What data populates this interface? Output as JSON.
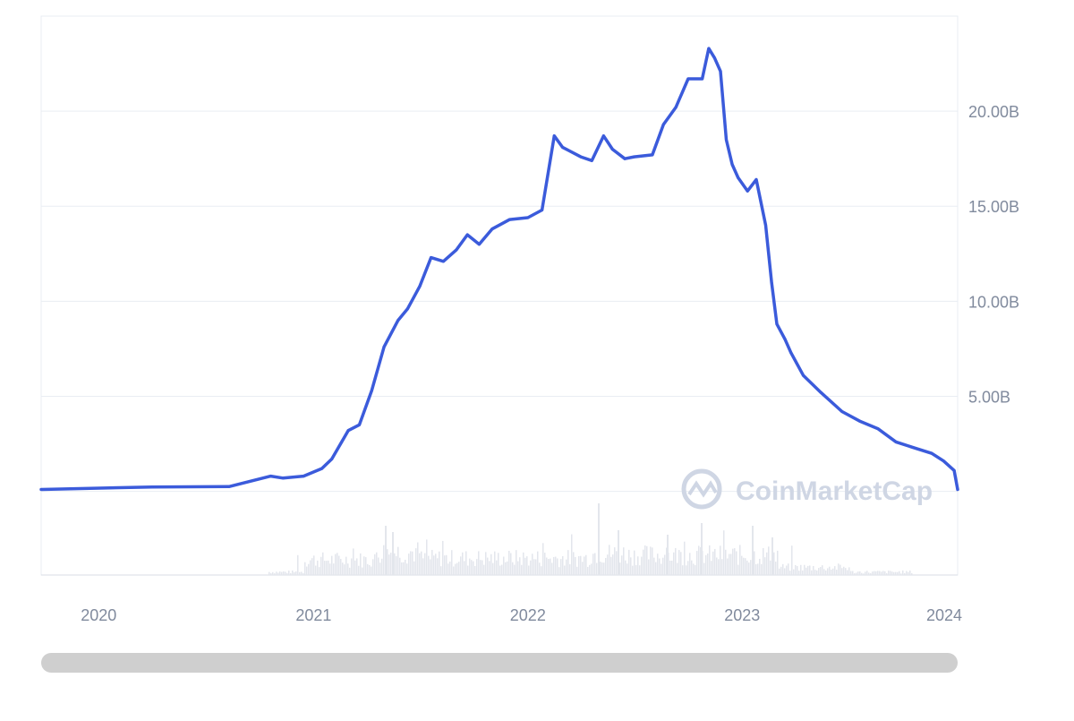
{
  "watermark": {
    "text": "CoinMarketCap"
  },
  "colors": {
    "line": "#3b5bdb",
    "grid": "#e9edf3",
    "axis": "#d9dde5",
    "volume": "#e3e6ec",
    "watermark": "#cfd6e4",
    "scrollbar": "#cfcfcf"
  },
  "chart_data": {
    "type": "line",
    "title": "",
    "xlabel": "",
    "ylabel": "",
    "y_axis_position": "right",
    "grid": true,
    "legend": "none",
    "ylim": [
      -4400000000,
      25000000000
    ],
    "xlim": [
      "2019-09-25",
      "2024-01-03"
    ],
    "yticks": [
      {
        "value": 5000000000,
        "label": "5.00B"
      },
      {
        "value": 10000000000,
        "label": "10.00B"
      },
      {
        "value": 15000000000,
        "label": "15.00B"
      },
      {
        "value": 20000000000,
        "label": "20.00B"
      }
    ],
    "xticks": [
      {
        "value": "2020-01-01",
        "label": "2020"
      },
      {
        "value": "2021-01-01",
        "label": "2021"
      },
      {
        "value": "2022-01-01",
        "label": "2022"
      },
      {
        "value": "2023-01-01",
        "label": "2023"
      },
      {
        "value": "2024-01-01",
        "label": "2024"
      }
    ],
    "series": [
      {
        "x": [
          "2019-09-25",
          "2020-04-01",
          "2020-08-10",
          "2020-10-20",
          "2020-11-10",
          "2020-12-15",
          "2021-01-15",
          "2021-02-01",
          "2021-03-01",
          "2021-03-20",
          "2021-04-10",
          "2021-05-01",
          "2021-05-25",
          "2021-06-10",
          "2021-07-01",
          "2021-07-20",
          "2021-08-10",
          "2021-09-01",
          "2021-09-20",
          "2021-10-10",
          "2021-11-01",
          "2021-12-01",
          "2022-01-01",
          "2022-01-25",
          "2022-02-15",
          "2022-03-01",
          "2022-04-01",
          "2022-04-20",
          "2022-05-10",
          "2022-05-25",
          "2022-06-15",
          "2022-07-01",
          "2022-08-01",
          "2022-08-20",
          "2022-09-10",
          "2022-10-01",
          "2022-10-25",
          "2022-11-05",
          "2022-11-15",
          "2022-11-25",
          "2022-12-05",
          "2022-12-15",
          "2022-12-25",
          "2023-01-10",
          "2023-01-25",
          "2023-02-10",
          "2023-02-20",
          "2023-03-01",
          "2023-03-15",
          "2023-03-25",
          "2023-04-15",
          "2023-05-15",
          "2023-06-20",
          "2023-07-20",
          "2023-08-20",
          "2023-09-20",
          "2023-10-20",
          "2023-11-20",
          "2023-12-10",
          "2023-12-28",
          "2024-01-03"
        ],
        "y": [
          100000000,
          230000000,
          250000000,
          800000000,
          700000000,
          800000000,
          1200000000,
          1700000000,
          3200000000,
          3500000000,
          5300000000,
          7600000000,
          9000000000,
          9600000000,
          10800000000,
          12300000000,
          12100000000,
          12700000000,
          13500000000,
          13000000000,
          13800000000,
          14300000000,
          14400000000,
          14800000000,
          18700000000,
          18100000000,
          17600000000,
          17400000000,
          18700000000,
          18000000000,
          17500000000,
          17600000000,
          17700000000,
          19300000000,
          20200000000,
          21700000000,
          21700000000,
          23300000000,
          22800000000,
          22100000000,
          18500000000,
          17200000000,
          16500000000,
          15800000000,
          16400000000,
          14000000000,
          11000000000,
          8800000000,
          8000000000,
          7300000000,
          6100000000,
          5200000000,
          4200000000,
          3700000000,
          3300000000,
          2600000000,
          2300000000,
          2000000000,
          1600000000,
          1100000000,
          100000000
        ]
      }
    ]
  }
}
